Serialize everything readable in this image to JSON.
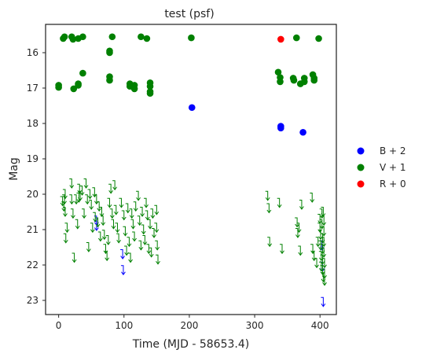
{
  "chart_data": {
    "type": "scatter",
    "title": "test (psf)",
    "xlabel": "Time (MJD - 58653.4)",
    "ylabel": "Mag",
    "xlim": [
      -20,
      425
    ],
    "ylim": [
      23.4,
      15.2
    ],
    "y_inverted": true,
    "grid": false,
    "legend_position": "right",
    "x_ticks": [
      0,
      100,
      200,
      300,
      400
    ],
    "y_ticks": [
      16,
      17,
      18,
      19,
      20,
      21,
      22,
      23
    ],
    "x_tick_labels": [
      "0",
      "100",
      "200",
      "300",
      "400"
    ],
    "y_tick_labels": [
      "16",
      "17",
      "18",
      "19",
      "20",
      "21",
      "22",
      "23"
    ],
    "series": [
      {
        "name": "B + 2",
        "color": "#0000ff",
        "detections": [
          [
            204,
            17.55
          ],
          [
            340,
            18.08
          ],
          [
            340,
            18.13
          ],
          [
            374,
            18.25
          ]
        ],
        "upper_limits": [
          [
            58,
            20.75
          ],
          [
            58,
            20.9
          ],
          [
            98,
            21.7
          ],
          [
            99,
            22.15
          ],
          [
            403,
            21.45
          ],
          [
            404,
            22.05
          ],
          [
            405,
            23.05
          ]
        ]
      },
      {
        "name": "V + 1",
        "color": "#008000",
        "detections": [
          [
            7,
            15.6
          ],
          [
            9,
            15.55
          ],
          [
            20,
            15.55
          ],
          [
            22,
            15.62
          ],
          [
            30,
            15.6
          ],
          [
            37,
            15.55
          ],
          [
            82,
            15.55
          ],
          [
            126,
            15.55
          ],
          [
            135,
            15.6
          ],
          [
            203,
            15.58
          ],
          [
            364,
            15.58
          ],
          [
            398,
            15.6
          ],
          [
            78,
            15.95
          ],
          [
            78,
            16.0
          ],
          [
            0,
            16.92
          ],
          [
            0,
            16.98
          ],
          [
            23,
            17.02
          ],
          [
            30,
            16.88
          ],
          [
            30,
            16.92
          ],
          [
            37,
            16.58
          ],
          [
            78,
            16.68
          ],
          [
            78,
            16.78
          ],
          [
            109,
            16.88
          ],
          [
            109,
            16.95
          ],
          [
            116,
            16.92
          ],
          [
            116,
            17.02
          ],
          [
            140,
            16.85
          ],
          [
            140,
            16.95
          ],
          [
            140,
            17.1
          ],
          [
            140,
            17.15
          ],
          [
            336,
            16.55
          ],
          [
            339,
            16.7
          ],
          [
            339,
            16.82
          ],
          [
            359,
            16.72
          ],
          [
            360,
            16.78
          ],
          [
            370,
            16.88
          ],
          [
            376,
            16.72
          ],
          [
            376,
            16.82
          ],
          [
            389,
            16.62
          ],
          [
            391,
            16.72
          ],
          [
            391,
            16.78
          ]
        ],
        "upper_limits": [
          [
            6,
            20.2
          ],
          [
            8,
            20.35
          ],
          [
            9,
            20.15
          ],
          [
            10,
            20.0
          ],
          [
            10,
            20.5
          ],
          [
            11,
            21.25
          ],
          [
            13,
            20.95
          ],
          [
            20,
            19.7
          ],
          [
            20,
            20.15
          ],
          [
            22,
            20.55
          ],
          [
            24,
            21.8
          ],
          [
            27,
            20.15
          ],
          [
            29,
            20.85
          ],
          [
            31,
            20.1
          ],
          [
            32,
            19.85
          ],
          [
            33,
            20.05
          ],
          [
            36,
            19.9
          ],
          [
            39,
            20.55
          ],
          [
            42,
            19.7
          ],
          [
            44,
            20.15
          ],
          [
            46,
            21.5
          ],
          [
            48,
            20.0
          ],
          [
            50,
            20.3
          ],
          [
            52,
            20.95
          ],
          [
            55,
            19.95
          ],
          [
            56,
            20.65
          ],
          [
            58,
            20.15
          ],
          [
            60,
            20.8
          ],
          [
            62,
            20.35
          ],
          [
            64,
            21.2
          ],
          [
            66,
            20.5
          ],
          [
            68,
            20.75
          ],
          [
            70,
            21.15
          ],
          [
            72,
            21.55
          ],
          [
            74,
            21.75
          ],
          [
            76,
            21.3
          ],
          [
            78,
            20.25
          ],
          [
            80,
            19.85
          ],
          [
            82,
            20.55
          ],
          [
            84,
            20.85
          ],
          [
            86,
            19.75
          ],
          [
            88,
            20.45
          ],
          [
            90,
            20.95
          ],
          [
            92,
            21.25
          ],
          [
            96,
            20.25
          ],
          [
            100,
            20.6
          ],
          [
            102,
            21.05
          ],
          [
            104,
            21.6
          ],
          [
            106,
            20.4
          ],
          [
            108,
            21.35
          ],
          [
            110,
            21.8
          ],
          [
            112,
            20.55
          ],
          [
            114,
            20.85
          ],
          [
            116,
            21.2
          ],
          [
            118,
            20.35
          ],
          [
            122,
            20.05
          ],
          [
            124,
            20.75
          ],
          [
            126,
            21.45
          ],
          [
            128,
            20.5
          ],
          [
            130,
            21.0
          ],
          [
            132,
            21.3
          ],
          [
            134,
            20.25
          ],
          [
            136,
            20.6
          ],
          [
            138,
            21.55
          ],
          [
            140,
            20.85
          ],
          [
            142,
            21.65
          ],
          [
            144,
            20.55
          ],
          [
            146,
            21.1
          ],
          [
            150,
            20.45
          ],
          [
            150,
            20.95
          ],
          [
            151,
            21.45
          ],
          [
            152,
            21.85
          ],
          [
            320,
            20.05
          ],
          [
            322,
            20.4
          ],
          [
            323,
            21.35
          ],
          [
            338,
            20.25
          ],
          [
            342,
            21.55
          ],
          [
            365,
            20.8
          ],
          [
            366,
            21.1
          ],
          [
            368,
            20.95
          ],
          [
            370,
            21.6
          ],
          [
            372,
            20.3
          ],
          [
            388,
            20.1
          ],
          [
            389,
            21.55
          ],
          [
            391,
            21.75
          ],
          [
            395,
            21.95
          ],
          [
            397,
            21.35
          ],
          [
            400,
            20.7
          ],
          [
            400,
            20.95
          ],
          [
            401,
            21.15
          ],
          [
            401,
            21.45
          ],
          [
            402,
            21.75
          ],
          [
            402,
            22.05
          ],
          [
            403,
            20.55
          ],
          [
            403,
            20.85
          ],
          [
            404,
            21.25
          ],
          [
            404,
            21.55
          ],
          [
            404,
            21.85
          ],
          [
            404,
            22.15
          ],
          [
            405,
            22.35
          ],
          [
            405,
            20.5
          ],
          [
            406,
            20.75
          ],
          [
            406,
            21.05
          ],
          [
            406,
            21.35
          ],
          [
            406,
            21.65
          ],
          [
            407,
            21.95
          ],
          [
            407,
            22.25
          ],
          [
            407,
            22.45
          ]
        ],
        "plot_legend": true
      },
      {
        "name": "R + 0",
        "color": "#ff0000",
        "detections": [
          [
            340,
            15.62
          ]
        ],
        "upper_limits": []
      }
    ]
  }
}
